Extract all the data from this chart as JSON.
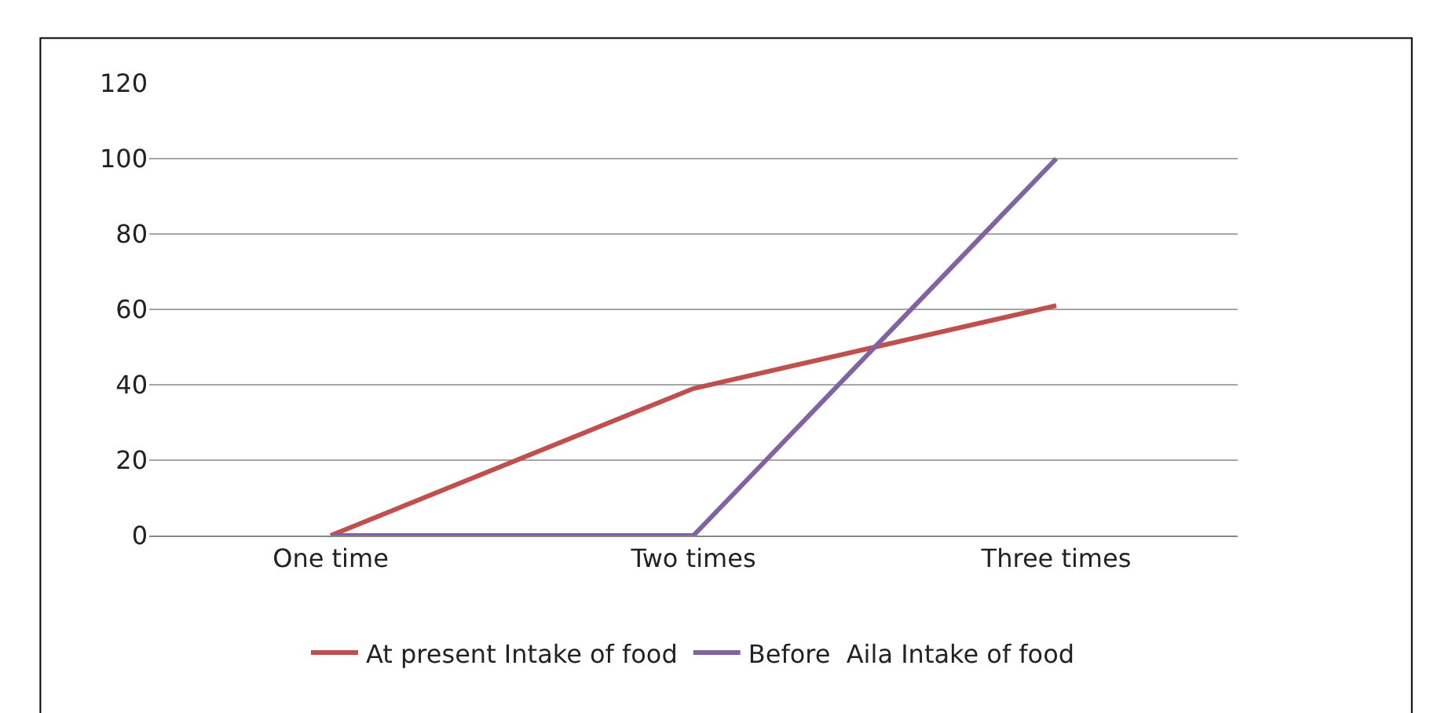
{
  "chart_data": {
    "type": "line",
    "categories": [
      "One time",
      "Two times",
      "Three times"
    ],
    "series": [
      {
        "name": "At present Intake of food",
        "color": "#c0504d",
        "values": [
          0,
          39,
          61
        ]
      },
      {
        "name": "Before  Aila Intake of food",
        "color": "#8064a2",
        "values": [
          0,
          0,
          100
        ]
      }
    ],
    "ylim": [
      0,
      120
    ],
    "yticks": [
      0,
      20,
      40,
      60,
      80,
      100,
      120
    ],
    "grid": "y",
    "legend": "bottom",
    "marker": "none",
    "line_style": "solid"
  }
}
